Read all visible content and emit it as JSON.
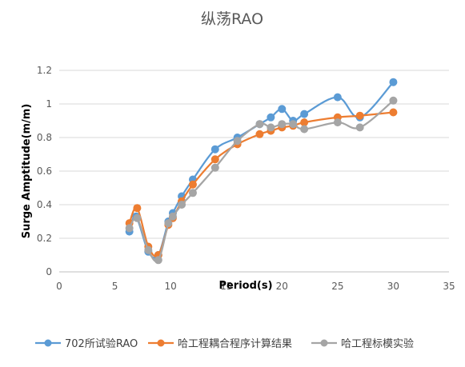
{
  "chart_data": {
    "type": "line",
    "title": "纵荡RAO",
    "xlabel": "Period(s)",
    "ylabel": "Surge Amptitude(m/m)",
    "xlim": [
      0,
      35
    ],
    "ylim": [
      0,
      1.2
    ],
    "x_ticks": [
      "0",
      "5",
      "10",
      "15",
      "20",
      "25",
      "30",
      "35"
    ],
    "y_ticks": [
      "0",
      "0.2",
      "0.4",
      "0.6",
      "0.8",
      "1",
      "1.2"
    ],
    "grid": "horizontal",
    "legend_position": "bottom",
    "series": [
      {
        "name": "702所试验RAO",
        "color": "#5B9BD5",
        "x": [
          6.3,
          6.9,
          8.0,
          8.9,
          9.8,
          10.2,
          11.0,
          12.0,
          14.0,
          16.0,
          18.0,
          19.0,
          20.0,
          21.0,
          22.0,
          25.0,
          27.0,
          30.0
        ],
        "y": [
          0.24,
          0.33,
          0.12,
          0.1,
          0.3,
          0.35,
          0.45,
          0.55,
          0.73,
          0.8,
          0.88,
          0.92,
          0.97,
          0.9,
          0.94,
          1.04,
          0.92,
          1.13
        ]
      },
      {
        "name": "哈工程耦合程序计算结果",
        "color": "#ED7D31",
        "x": [
          6.3,
          7.0,
          8.0,
          8.9,
          9.8,
          10.2,
          11.0,
          12.0,
          14.0,
          16.0,
          18.0,
          19.0,
          20.0,
          21.0,
          22.0,
          25.0,
          27.0,
          30.0
        ],
        "y": [
          0.29,
          0.38,
          0.15,
          0.1,
          0.28,
          0.32,
          0.42,
          0.52,
          0.67,
          0.76,
          0.82,
          0.84,
          0.86,
          0.87,
          0.89,
          0.92,
          0.93,
          0.95
        ]
      },
      {
        "name": "哈工程标模实验",
        "color": "#A5A5A5",
        "x": [
          6.3,
          7.0,
          8.0,
          8.9,
          9.8,
          10.2,
          11.0,
          12.0,
          14.0,
          16.0,
          18.0,
          19.0,
          20.0,
          21.0,
          22.0,
          25.0,
          27.0,
          30.0
        ],
        "y": [
          0.26,
          0.32,
          0.13,
          0.07,
          0.29,
          0.33,
          0.4,
          0.47,
          0.62,
          0.78,
          0.88,
          0.86,
          0.88,
          0.88,
          0.85,
          0.89,
          0.86,
          1.02
        ]
      }
    ]
  }
}
